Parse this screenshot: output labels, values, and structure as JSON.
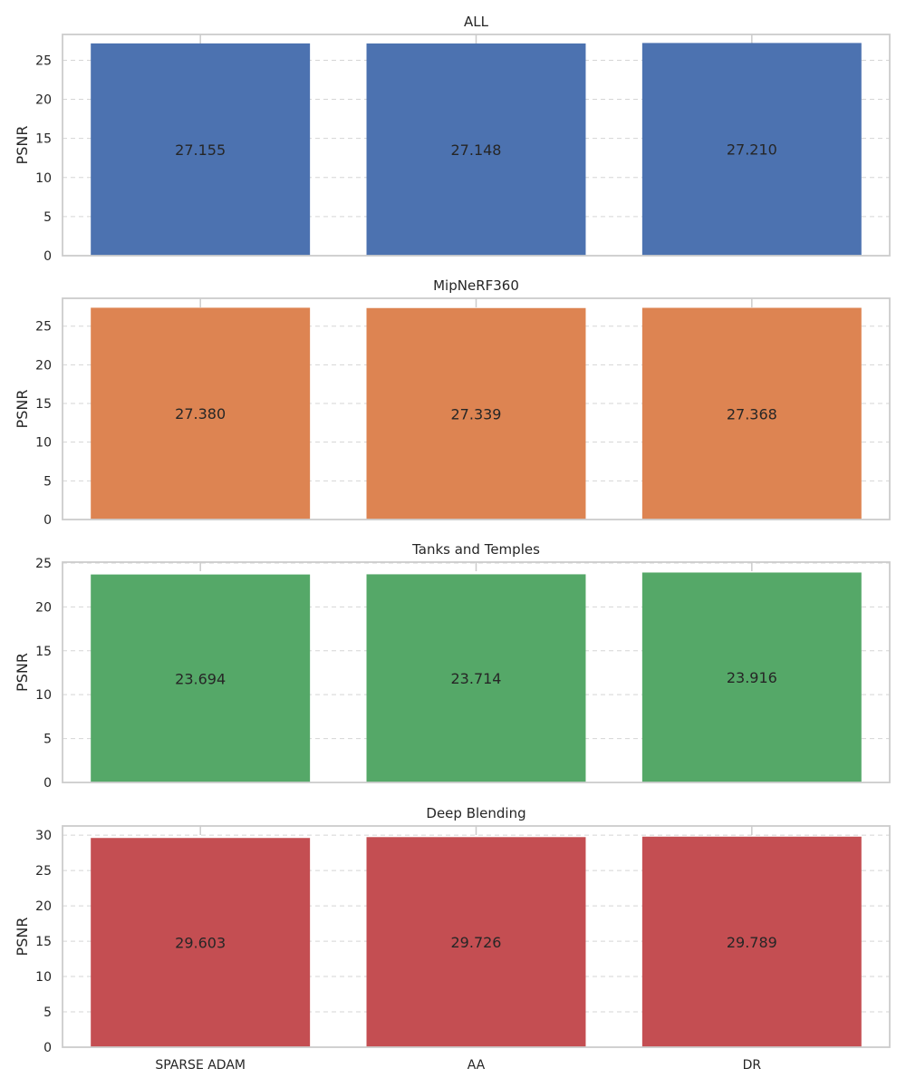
{
  "chart_data": [
    {
      "type": "bar",
      "title": "ALL",
      "ylabel": "PSNR",
      "categories": [
        "SPARSE ADAM",
        "AA",
        "DR"
      ],
      "values": [
        27.155,
        27.148,
        27.21
      ],
      "value_labels": [
        "27.155",
        "27.148",
        "27.210"
      ],
      "ylim": [
        0,
        28.3
      ],
      "yticks": [
        0,
        5,
        10,
        15,
        20,
        25
      ],
      "color": "#4c72b0",
      "show_xticklabels": false
    },
    {
      "type": "bar",
      "title": "MipNeRF360",
      "ylabel": "PSNR",
      "categories": [
        "SPARSE ADAM",
        "AA",
        "DR"
      ],
      "values": [
        27.38,
        27.339,
        27.368
      ],
      "value_labels": [
        "27.380",
        "27.339",
        "27.368"
      ],
      "ylim": [
        0,
        28.6
      ],
      "yticks": [
        0,
        5,
        10,
        15,
        20,
        25
      ],
      "color": "#dd8452",
      "show_xticklabels": false
    },
    {
      "type": "bar",
      "title": "Tanks and Temples",
      "ylabel": "PSNR",
      "categories": [
        "SPARSE ADAM",
        "AA",
        "DR"
      ],
      "values": [
        23.694,
        23.714,
        23.916
      ],
      "value_labels": [
        "23.694",
        "23.714",
        "23.916"
      ],
      "ylim": [
        0,
        25.1
      ],
      "yticks": [
        0,
        5,
        10,
        15,
        20,
        25
      ],
      "color": "#55a868",
      "show_xticklabels": false
    },
    {
      "type": "bar",
      "title": "Deep Blending",
      "ylabel": "PSNR",
      "categories": [
        "SPARSE ADAM",
        "AA",
        "DR"
      ],
      "values": [
        29.603,
        29.726,
        29.789
      ],
      "value_labels": [
        "29.603",
        "29.726",
        "29.789"
      ],
      "ylim": [
        0,
        31.3
      ],
      "yticks": [
        0,
        5,
        10,
        15,
        20,
        25,
        30
      ],
      "color": "#c44e52",
      "show_xticklabels": true
    }
  ],
  "style": {
    "grid": "y, dashed",
    "axis_color": "#cccccc",
    "grid_color": "#d5d5d5",
    "text_color": "#262626",
    "background": "#ffffff"
  }
}
